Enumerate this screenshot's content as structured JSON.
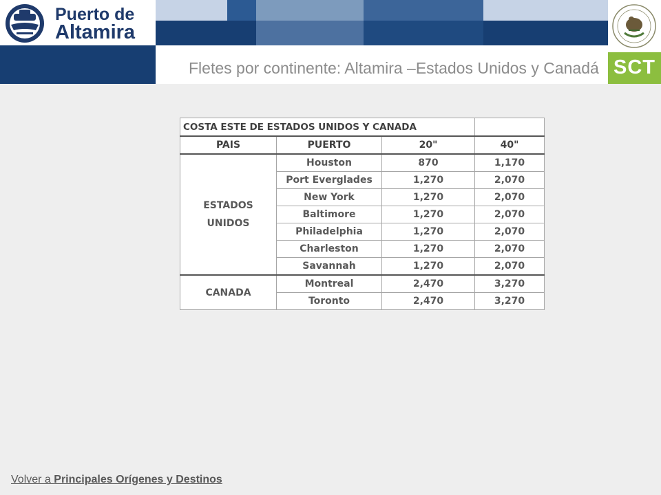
{
  "header": {
    "logo_line1": "Puerto de",
    "logo_line2": "Altamira",
    "sct_label": "SCT"
  },
  "page_title": "Fletes por continente: Altamira –Estados Unidos y Canadá",
  "table": {
    "title": "COSTA ESTE DE ESTADOS UNIDOS Y CANADA",
    "columns": [
      "PAIS",
      "PUERTO",
      "20\"",
      "40\""
    ],
    "groups": [
      {
        "country_line1": "ESTADOS",
        "country_line2": "UNIDOS",
        "rows": [
          {
            "port": "Houston",
            "c20": "870",
            "c40": "1,170"
          },
          {
            "port": "Port Everglades",
            "c20": "1,270",
            "c40": "2,070"
          },
          {
            "port": "New York",
            "c20": "1,270",
            "c40": "2,070"
          },
          {
            "port": "Baltimore",
            "c20": "1,270",
            "c40": "2,070"
          },
          {
            "port": "Philadelphia",
            "c20": "1,270",
            "c40": "2,070"
          },
          {
            "port": "Charleston",
            "c20": "1,270",
            "c40": "2,070"
          },
          {
            "port": "Savannah",
            "c20": "1,270",
            "c40": "2,070"
          }
        ]
      },
      {
        "country_line1": "CANADA",
        "country_line2": "",
        "rows": [
          {
            "port": "Montreal",
            "c20": "2,470",
            "c40": "3,270"
          },
          {
            "port": "Toronto",
            "c20": "2,470",
            "c40": "3,270"
          }
        ]
      }
    ]
  },
  "footer": {
    "prefix": "Volver a ",
    "link": "Principales Orígenes y Destinos"
  },
  "colors": {
    "navy": "#173e72",
    "sct_green": "#8cbe3f"
  }
}
